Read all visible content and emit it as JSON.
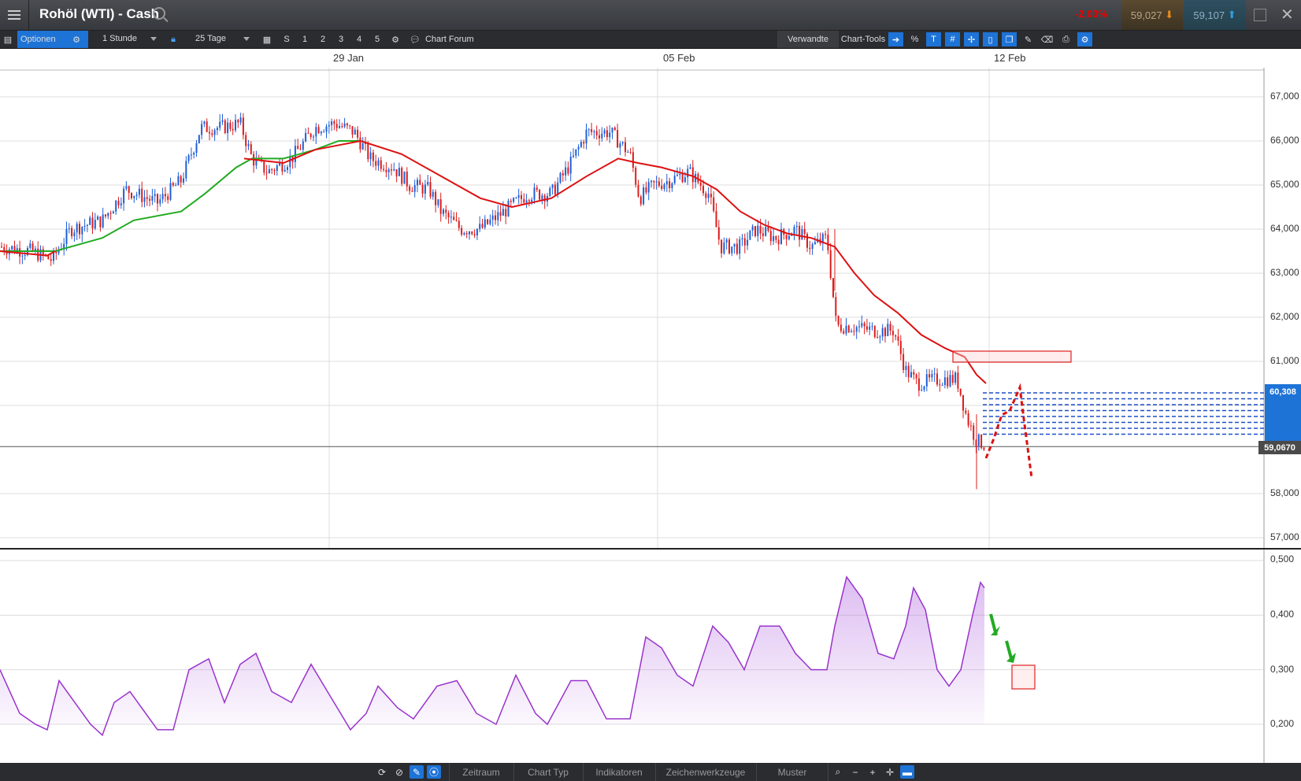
{
  "header": {
    "title": "Rohöl (WTI) - Cash",
    "change": "-2,03%",
    "sell_price": "59,027",
    "buy_price": "59,107"
  },
  "toolbar": {
    "options_label": "Optionen",
    "interval": "1 Stunde",
    "range": "25 Tage",
    "quick_ranges": [
      "S",
      "1",
      "2",
      "3",
      "4",
      "5"
    ],
    "chart_forum_label": "Chart Forum",
    "related_label": "Verwandte",
    "chart_tools_label": "Chart-Tools"
  },
  "chart_data": [
    {
      "type": "candlestick",
      "title": "",
      "x_ticks": [
        "29 Jan",
        "05 Feb",
        "12 Feb"
      ],
      "y_ticks": [
        "67,000",
        "66,000",
        "65,000",
        "64,000",
        "63,000",
        "62,000",
        "61,000",
        "58,000",
        "57,000"
      ],
      "ylim": [
        56.8,
        67.6
      ],
      "last_price": "59,0670",
      "marker_price": "60,308",
      "grid": true,
      "close_series_approx": [
        [
          "2018-01-22",
          63.6
        ],
        [
          "2018-01-23",
          64.3
        ],
        [
          "2018-01-24",
          65.2
        ],
        [
          "2018-01-25",
          66.2
        ],
        [
          "2018-01-26",
          65.5
        ],
        [
          "2018-01-29",
          66.0
        ],
        [
          "2018-01-30",
          65.0
        ],
        [
          "2018-01-31",
          64.7
        ],
        [
          "2018-02-01",
          64.0
        ],
        [
          "2018-02-02",
          65.3
        ],
        [
          "2018-02-05",
          65.5
        ],
        [
          "2018-02-06",
          64.5
        ],
        [
          "2018-02-07",
          64.0
        ],
        [
          "2018-02-08",
          61.5
        ],
        [
          "2018-02-09",
          59.5
        ],
        [
          "2018-02-12",
          59.07
        ]
      ],
      "moving_averages": [
        {
          "color": "#22aa22",
          "values_approx": [
            63.5,
            63.8,
            64.3,
            65.3,
            65.8,
            66.0
          ]
        },
        {
          "color": "#dd1111",
          "values_approx": [
            65.6,
            65.5,
            66.0,
            65.4,
            64.5,
            65.6,
            65.0,
            64.0,
            62.0,
            60.5
          ]
        }
      ]
    },
    {
      "type": "area",
      "title": "",
      "y_ticks": [
        "0,500",
        "0,400",
        "0,300",
        "0,200"
      ],
      "ylim": [
        0.17,
        0.52
      ],
      "color": "#9933cc",
      "values_approx": [
        0.31,
        0.2,
        0.28,
        0.19,
        0.26,
        0.2,
        0.33,
        0.24,
        0.33,
        0.23,
        0.3,
        0.21,
        0.26,
        0.21,
        0.27,
        0.21,
        0.28,
        0.2,
        0.28,
        0.22,
        0.36,
        0.27,
        0.39,
        0.3,
        0.39,
        0.3,
        0.47,
        0.32,
        0.45,
        0.29,
        0.46
      ]
    }
  ],
  "bottom_toolbar": {
    "tabs": [
      "Zeitraum",
      "Chart Typ",
      "Indikatoren",
      "Zeichenwerkzeuge",
      "Muster"
    ]
  }
}
